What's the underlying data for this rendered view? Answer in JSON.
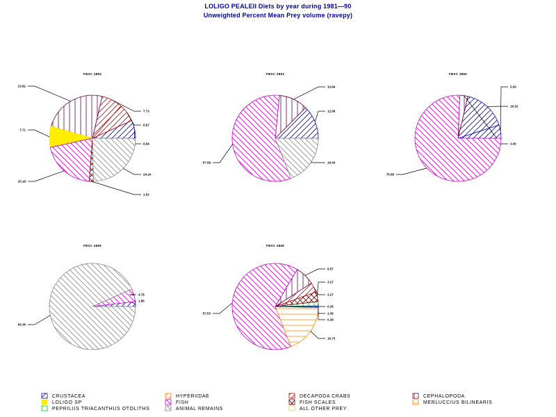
{
  "header": {
    "title": "LOLIGO PEALEII Diets by year during  1981—90",
    "subtitle": "Unweighted Percent Mean Prey volume (ravepy)"
  },
  "chart_data": {
    "type": "pie",
    "categories": [
      {
        "key": "crustacea",
        "name": "CRUSTACEA",
        "color": "#0000cc",
        "pattern": "diag-up"
      },
      {
        "key": "hyperiidae",
        "name": "HYPERIIDAE",
        "color": "#ff8800",
        "pattern": "diag-up"
      },
      {
        "key": "decapoda",
        "name": "DECAPODA CRABS",
        "color": "#cc0000",
        "pattern": "diag-up"
      },
      {
        "key": "cephalopoda",
        "name": "CEPHALOPODA",
        "color": "#660044",
        "pattern": "vertical"
      },
      {
        "key": "loligo",
        "name": "LOLIGO SP",
        "color": "#ffee00",
        "pattern": "solid"
      },
      {
        "key": "fish",
        "name": "FISH",
        "color": "#cc00cc",
        "pattern": "diag-down"
      },
      {
        "key": "fish_scales",
        "name": "FISH SCALES",
        "color": "#660000",
        "pattern": "cross"
      },
      {
        "key": "merluccius",
        "name": "MERLUCCIUS BILINEARIS",
        "color": "#ff8800",
        "pattern": "horizontal"
      },
      {
        "key": "peprilus",
        "name": "PEPRILUS TRIACANTHUS OTOLITHS",
        "color": "#00cc00",
        "pattern": "vertical"
      },
      {
        "key": "animal_remains",
        "name": "ANIMAL REMAINS",
        "color": "#888888",
        "pattern": "diag-down"
      },
      {
        "key": "all_other",
        "name": "ALL OTHER PREY",
        "color": "#ddcc44",
        "pattern": "none"
      }
    ],
    "pies": [
      {
        "title": "FBSC 4864",
        "slices": [
          {
            "category": "crustacea",
            "value": 6.66,
            "label": "6.66"
          },
          {
            "category": "decapoda",
            "value": 6.67,
            "label": "6.67"
          },
          {
            "category": "decapoda",
            "value": 7.73,
            "label": "7.73"
          },
          {
            "category": "cephalopoda",
            "value": 23.82,
            "label": "23.82"
          },
          {
            "category": "loligo",
            "value": 7.71,
            "label": "7.71"
          },
          {
            "category": "fish",
            "value": 20.18,
            "label": "20.18"
          },
          {
            "category": "fish_scales",
            "value": 1.52,
            "label": "1.52"
          },
          {
            "category": "animal_remains",
            "value": 24.24,
            "label": "24.24"
          }
        ]
      },
      {
        "title": "FBSC 4863",
        "slices": [
          {
            "category": "crustacea",
            "value": 12.58,
            "label": "12.58"
          },
          {
            "category": "cephalopoda",
            "value": 10.84,
            "label": "10.84"
          },
          {
            "category": "fish",
            "value": 57.58,
            "label": "57.58"
          },
          {
            "category": "animal_remains",
            "value": 19.0,
            "label": "19.00"
          }
        ]
      },
      {
        "title": "FBSC 4865",
        "slices": [
          {
            "category": "crustacea",
            "value": 5.0,
            "label": "5.00"
          },
          {
            "category": "crustacea",
            "value": 16.32,
            "label": "16.32"
          },
          {
            "category": "cephalopoda",
            "value": 3.0,
            "label": "3.00"
          },
          {
            "category": "fish",
            "value": 75.68,
            "label": "75.68"
          }
        ]
      },
      {
        "title": "FBSC 4866",
        "slices": [
          {
            "category": "crustacea",
            "value": 1.86,
            "label": "1.86"
          },
          {
            "category": "fish",
            "value": 4.78,
            "label": "4.78"
          },
          {
            "category": "animal_remains",
            "value": 93.36,
            "label": "93.36"
          }
        ]
      },
      {
        "title": "FBSC 4868",
        "slices": [
          {
            "category": "crustacea",
            "value": 0.26,
            "label": "0.26"
          },
          {
            "category": "peprilus",
            "value": 1.36,
            "label": "1.36"
          },
          {
            "category": "fish_scales",
            "value": 3.27,
            "label": "3.27"
          },
          {
            "category": "decapoda",
            "value": 3.27,
            "label": "3.27"
          },
          {
            "category": "cephalopoda",
            "value": 6.57,
            "label": "6.57"
          },
          {
            "category": "fish",
            "value": 57.53,
            "label": "57.53"
          },
          {
            "category": "merluccius",
            "value": 16.73,
            "label": "16.73"
          },
          {
            "category": "crustacea",
            "value": 0.28,
            "label": "0.28"
          }
        ]
      }
    ]
  }
}
